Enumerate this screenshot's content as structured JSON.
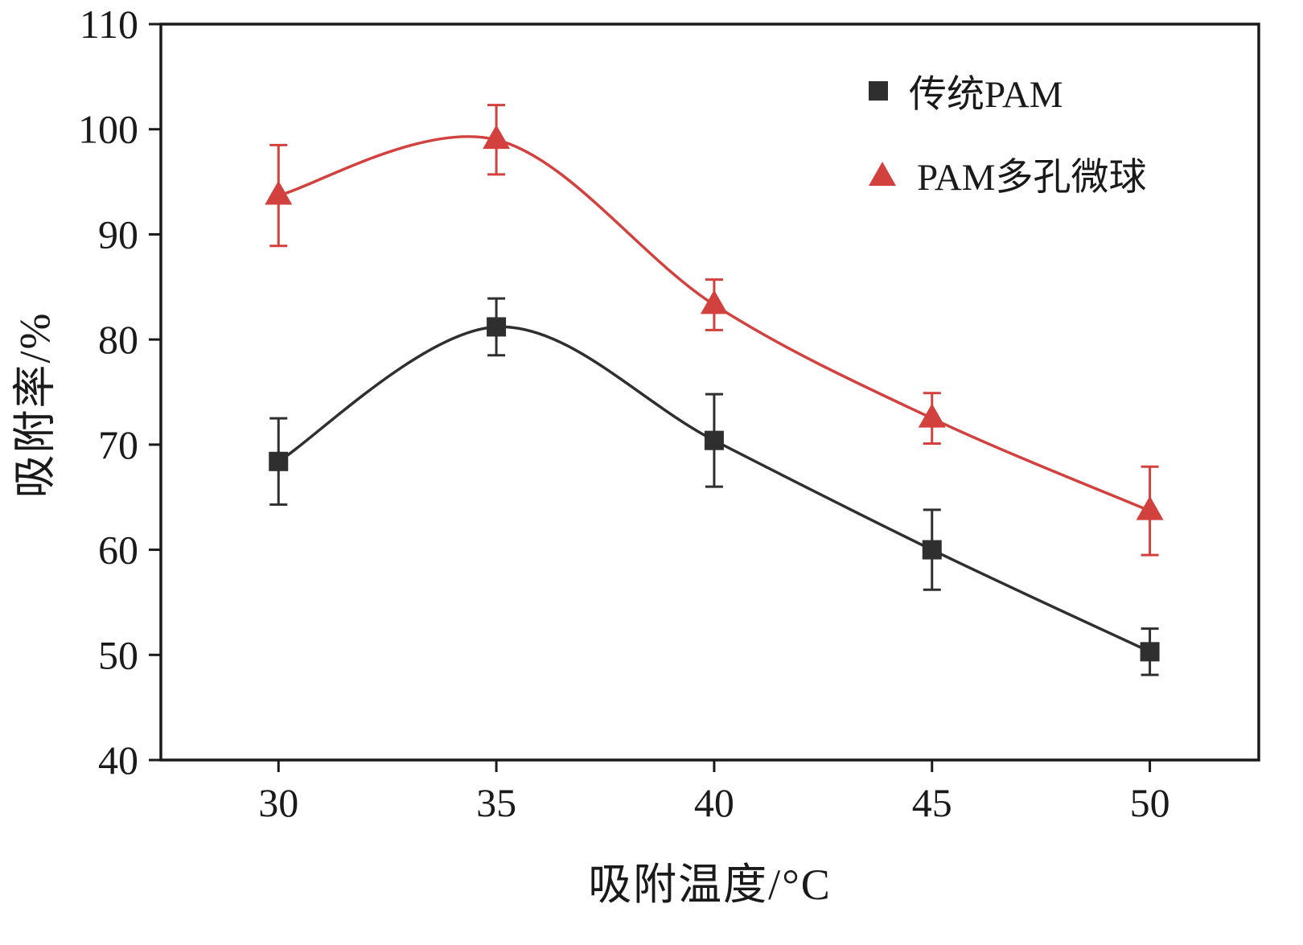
{
  "chart_data": {
    "type": "line",
    "x": [
      30,
      35,
      40,
      45,
      50
    ],
    "series": [
      {
        "name": "传统PAM",
        "marker": "square",
        "color": "#2f2f2f",
        "values": [
          68.4,
          81.2,
          70.4,
          60.0,
          50.3
        ],
        "errors": [
          4.1,
          2.7,
          4.4,
          3.8,
          2.2
        ]
      },
      {
        "name": "PAM多孔微球",
        "marker": "triangle",
        "color": "#d2413e",
        "values": [
          93.7,
          99.0,
          83.3,
          72.5,
          63.7
        ],
        "errors": [
          4.8,
          3.3,
          2.4,
          2.4,
          4.2
        ]
      }
    ],
    "title": "",
    "xlabel": "吸附温度/°C",
    "ylabel": "吸附率/%",
    "xlim": [
      27.3,
      52.5
    ],
    "ylim": [
      40,
      110
    ],
    "xticks": [
      30,
      35,
      40,
      45,
      50
    ],
    "yticks": [
      40,
      50,
      60,
      70,
      80,
      90,
      100,
      110
    ],
    "grid": false,
    "legend_position": "top-right",
    "frame_color": "#1a1a1a"
  }
}
